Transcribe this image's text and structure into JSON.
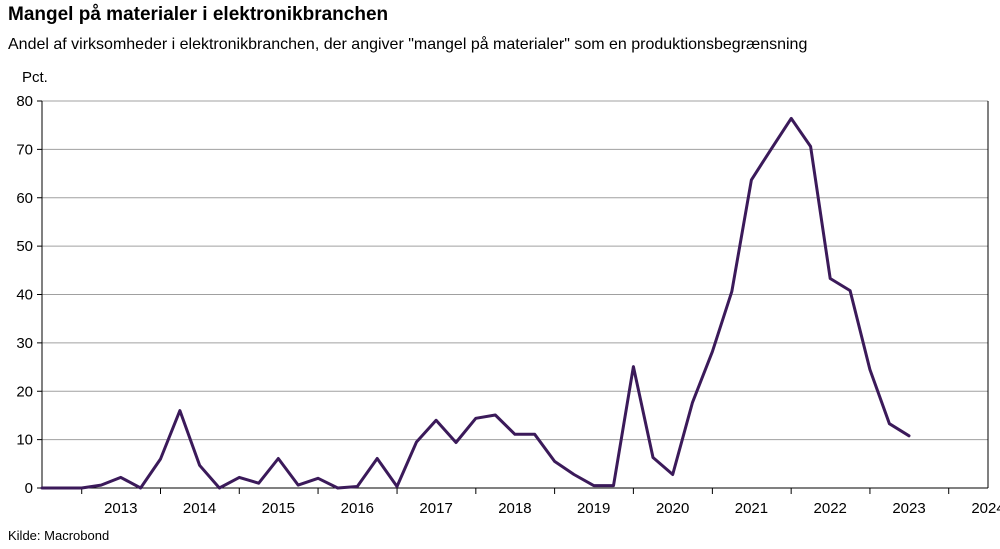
{
  "title": "Mangel på materialer i elektronikbranchen",
  "subtitle": "Andel af virksomheder i elektronikbranchen, der angiver \"mangel på materialer\" som en produktionsbegrænsning",
  "source": "Kilde: Macrobond",
  "colors": {
    "line": "#3b1a5a",
    "grid": "#a0a0a0",
    "axis": "#000000"
  },
  "chart_data": {
    "type": "line",
    "ylabel": "Pct.",
    "ylim": [
      0,
      80
    ],
    "yticks": [
      0,
      10,
      20,
      30,
      40,
      50,
      60,
      70,
      80
    ],
    "xlim": [
      "2012-07-01",
      "2024-07-01"
    ],
    "xticks": [
      "2013",
      "2014",
      "2015",
      "2016",
      "2017",
      "2018",
      "2019",
      "2020",
      "2021",
      "2022",
      "2023",
      "2024"
    ],
    "grid": true,
    "series": [
      {
        "x": [
          "2012-07-01",
          "2012-10-01",
          "2013-01-01",
          "2013-04-01",
          "2013-07-01",
          "2013-10-01",
          "2014-01-01",
          "2014-04-01",
          "2014-07-01",
          "2014-10-01",
          "2015-01-01",
          "2015-04-01",
          "2015-07-01",
          "2015-10-01",
          "2016-01-01",
          "2016-04-01",
          "2016-07-01",
          "2016-10-01",
          "2017-01-01",
          "2017-04-01",
          "2017-07-01",
          "2017-10-01",
          "2018-01-01",
          "2018-04-01",
          "2018-07-01",
          "2018-10-01",
          "2019-01-01",
          "2019-04-01",
          "2019-07-01",
          "2019-10-01",
          "2020-01-01",
          "2020-04-01",
          "2020-07-01",
          "2020-10-01",
          "2021-01-01",
          "2021-04-01",
          "2021-07-01",
          "2021-10-01",
          "2022-01-01",
          "2022-04-01",
          "2022-07-01",
          "2022-10-01",
          "2023-01-01",
          "2023-04-01",
          "2023-07-01"
        ],
        "y": [
          0,
          0,
          0,
          0.6,
          2.2,
          0,
          6,
          16,
          4.7,
          0,
          2.2,
          1,
          6.1,
          0.6,
          2,
          0,
          0.3,
          6.1,
          0.3,
          9.5,
          14,
          9.4,
          14.4,
          15.1,
          11.1,
          11.1,
          5.5,
          2.8,
          0.5,
          0.5,
          25.1,
          6.3,
          2.8,
          17.7,
          28.2,
          40.6,
          63.7,
          70.1,
          76.4,
          70.6,
          43.3,
          40.8,
          24.5,
          13.3,
          10.8
        ]
      }
    ]
  }
}
